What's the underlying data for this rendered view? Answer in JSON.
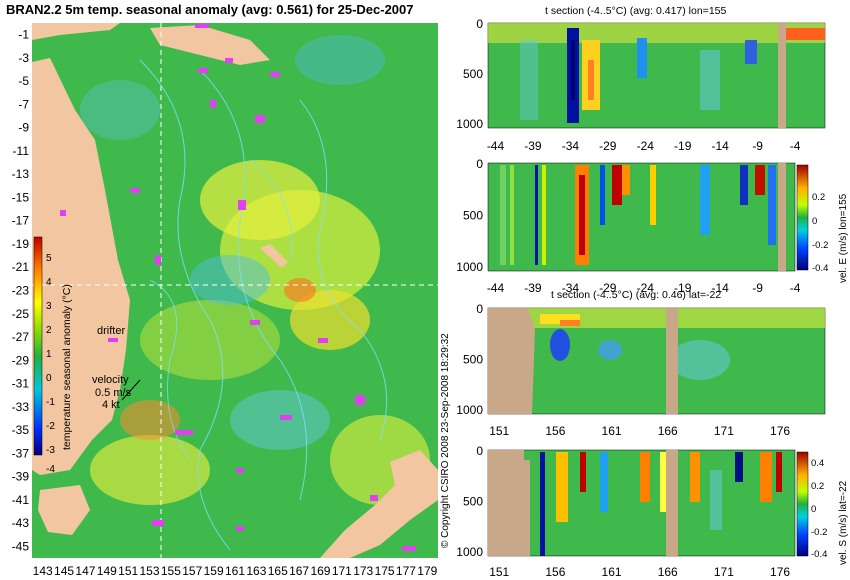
{
  "colors": {
    "background": "#ffffff",
    "land": "#f2c6a0",
    "section_land": "#c8a888",
    "ocean_base": "#3fb94c",
    "guide_lines": "#ffffff",
    "drifter": "#e040f0"
  },
  "chart_data": [
    {
      "type": "heatmap",
      "title": "BRAN2.2 5m temp. seasonal anomaly (avg: 0.561) for 25-Dec-2007",
      "x_ticks": [
        "143",
        "145",
        "147",
        "149",
        "151",
        "153",
        "155",
        "157",
        "159",
        "161",
        "163",
        "165",
        "167",
        "169",
        "171",
        "173",
        "175",
        "177",
        "179"
      ],
      "y_ticks": [
        "-1",
        "-3",
        "-5",
        "-7",
        "-9",
        "-11",
        "-13",
        "-15",
        "-17",
        "-19",
        "-21",
        "-23",
        "-25",
        "-27",
        "-29",
        "-31",
        "-33",
        "-35",
        "-37",
        "-39",
        "-41",
        "-43",
        "-45"
      ],
      "xlim": [
        142,
        180
      ],
      "ylim": [
        -46,
        0
      ],
      "guide_lon": 155,
      "guide_lat": -22,
      "colorbar": {
        "label": "temperature seasonal anomaly (°C)",
        "ticks": [
          "5",
          "4",
          "3",
          "2",
          "1",
          "0",
          "-1",
          "-2",
          "-3",
          "-4"
        ],
        "range": [
          -4,
          5
        ]
      },
      "legend": {
        "drifter_label": "drifter",
        "velocity_label": "velocity",
        "velocity_scale": "0.5 m/s",
        "velocity_scale_alt": "4 kt"
      },
      "credit": "© Copyright CSIRO 2008  23-Sep-2008 18:29:32"
    },
    {
      "type": "heatmap",
      "title": "t section (-4..5°C) (avg: 0.417) lon=155",
      "x_ticks": [
        "-44",
        "-39",
        "-34",
        "-29",
        "-24",
        "-19",
        "-14",
        "-9",
        "-4"
      ],
      "y_ticks": [
        "0",
        "500",
        "1000"
      ],
      "xlim": [
        -45,
        0
      ],
      "ylim": [
        1050,
        0
      ],
      "notable_anomalies": [
        {
          "x": -34,
          "value": -4
        },
        {
          "x": -31,
          "value": 3
        },
        {
          "x": -22,
          "value": -2
        },
        {
          "x": -9,
          "value": -2
        },
        {
          "x": -2,
          "value": 4
        }
      ]
    },
    {
      "type": "heatmap",
      "title": "",
      "x_ticks": [
        "-44",
        "-39",
        "-34",
        "-29",
        "-24",
        "-19",
        "-14",
        "-9",
        "-4"
      ],
      "y_ticks": [
        "0",
        "500",
        "1000"
      ],
      "xlim": [
        -45,
        0
      ],
      "ylim": [
        1050,
        0
      ],
      "colorbar": {
        "label": "vel. E (m/s) lon=155",
        "ticks": [
          "0.2",
          "0",
          "-0.2",
          "-0.4"
        ],
        "range": [
          -0.4,
          0.4
        ]
      }
    },
    {
      "type": "heatmap",
      "title": "t section (-4..5°C) (avg: 0.46) lat=-22",
      "x_ticks": [
        "151",
        "156",
        "161",
        "166",
        "171",
        "176"
      ],
      "y_ticks": [
        "0",
        "500",
        "1000"
      ],
      "xlim": [
        150,
        180
      ],
      "ylim": [
        1050,
        0
      ]
    },
    {
      "type": "heatmap",
      "title": "",
      "x_ticks": [
        "151",
        "156",
        "161",
        "166",
        "171",
        "176"
      ],
      "y_ticks": [
        "0",
        "500",
        "1000"
      ],
      "xlim": [
        150,
        180
      ],
      "ylim": [
        1050,
        0
      ],
      "colorbar": {
        "label": "vel. S (m/s) lat=-22",
        "ticks": [
          "0.4",
          "0.2",
          "0",
          "-0.2",
          "-0.4"
        ],
        "range": [
          -0.4,
          0.4
        ]
      }
    }
  ]
}
